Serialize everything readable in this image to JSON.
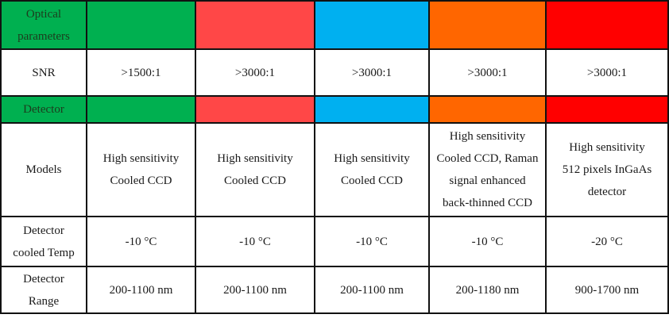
{
  "table": {
    "column_colors": [
      "#00b050",
      "#00b050",
      "#ff4747",
      "#00b0f0",
      "#ff6600",
      "#ff0000"
    ],
    "rows": {
      "optical_header": {
        "label_lines": [
          "Optical",
          "parameters"
        ]
      },
      "snr": {
        "label": "SNR",
        "values": [
          ">1500:1",
          ">3000:1",
          ">3000:1",
          ">3000:1",
          ">3000:1"
        ]
      },
      "detector_header": {
        "label": "Detector"
      },
      "models": {
        "label": "Models",
        "values": [
          [
            "High sensitivity",
            "Cooled CCD"
          ],
          [
            "High sensitivity",
            "Cooled CCD"
          ],
          [
            "High sensitivity",
            "Cooled CCD"
          ],
          [
            "High sensitivity",
            "Cooled CCD, Raman",
            "signal enhanced",
            "back-thinned CCD"
          ],
          [
            "High sensitivity",
            "512 pixels InGaAs",
            "detector"
          ]
        ]
      },
      "cooled_temp": {
        "label_lines": [
          "Detector",
          "cooled Temp"
        ],
        "values": [
          "-10 °C",
          "-10 °C",
          "-10 °C",
          "-10 °C",
          "-20 °C"
        ]
      },
      "range": {
        "label_lines": [
          "Detector",
          "Range"
        ],
        "values": [
          "200-1100 nm",
          "200-1100 nm",
          "200-1100 nm",
          "200-1180 nm",
          "900-1700 nm"
        ]
      }
    }
  }
}
